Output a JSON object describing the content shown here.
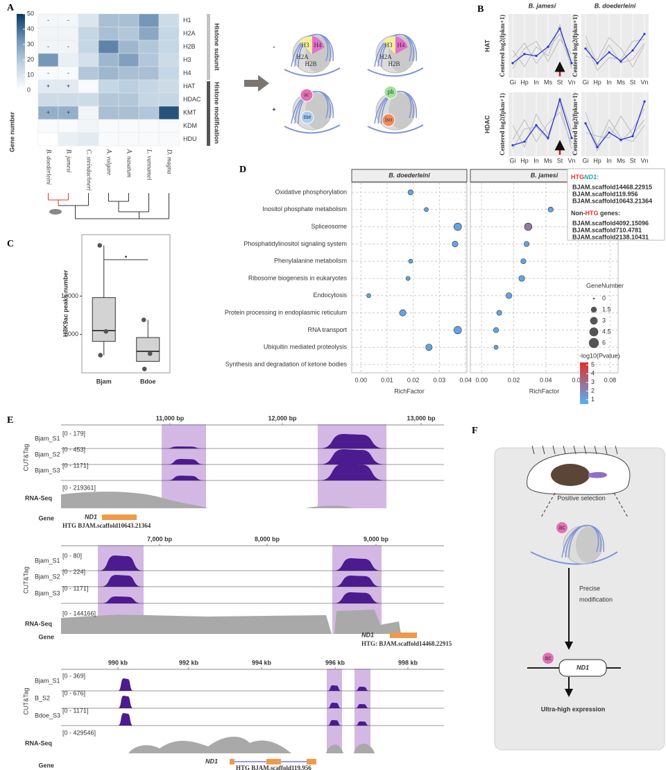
{
  "panel_labels": [
    "A",
    "B",
    "C",
    "D",
    "E",
    "F"
  ],
  "chart_data": [
    {
      "type": "heatmap",
      "rows": [
        "H1",
        "H2A",
        "H2B",
        "H3",
        "H4",
        "HAT",
        "HDAC",
        "KMT",
        "KDM",
        "HDU"
      ],
      "columns": [
        "B. doederleini",
        "B. jamesi",
        "C. steindachneri",
        "A. vulgare",
        "A. nasatum",
        "L. vannamei",
        "D. magna"
      ],
      "column_colors": [
        "#e8322a",
        "#e8322a",
        "#333333",
        "#333333",
        "#333333",
        "#333333",
        "#333333"
      ],
      "values": [
        [
          3,
          3,
          10,
          22,
          22,
          32,
          14
        ],
        [
          4,
          4,
          16,
          22,
          20,
          28,
          16
        ],
        [
          4,
          4,
          16,
          36,
          24,
          20,
          16
        ],
        [
          32,
          6,
          12,
          24,
          30,
          20,
          14
        ],
        [
          2,
          2,
          20,
          24,
          22,
          22,
          16
        ],
        [
          8,
          8,
          2,
          16,
          18,
          16,
          14
        ],
        [
          14,
          14,
          14,
          20,
          20,
          16,
          16
        ],
        [
          26,
          26,
          4,
          22,
          22,
          20,
          45
        ],
        [
          2,
          2,
          4,
          2,
          2,
          2,
          2
        ],
        [
          0,
          6,
          8,
          2,
          2,
          2,
          2
        ]
      ],
      "annotations": [
        [
          "-",
          "-",
          null,
          null,
          null,
          null,
          null
        ],
        [
          null,
          null,
          null,
          null,
          null,
          null,
          null
        ],
        [
          "-",
          "-",
          null,
          null,
          null,
          null,
          null
        ],
        [
          null,
          null,
          null,
          null,
          null,
          null,
          null
        ],
        [
          "-",
          "-",
          null,
          null,
          null,
          null,
          null
        ],
        [
          "+",
          "+",
          null,
          null,
          null,
          null,
          null
        ],
        [
          null,
          null,
          null,
          null,
          null,
          null,
          null
        ],
        [
          "+",
          "+",
          null,
          null,
          null,
          null,
          null
        ],
        [
          null,
          null,
          null,
          null,
          null,
          null,
          null
        ],
        [
          null,
          null,
          null,
          null,
          null,
          null,
          null
        ]
      ],
      "zlim": [
        0,
        50
      ],
      "zticks": [
        0,
        10,
        20,
        30,
        40,
        50
      ],
      "colorscale": [
        "#ffffff",
        "#c3d4e3",
        "#6f93b4",
        "#083862"
      ],
      "colorbar_label": "Gene number",
      "group_labels": [
        "Histone subunit",
        "Histone modification"
      ]
    },
    {
      "type": "line",
      "columns": [
        "B. jamesi",
        "B. doederleini"
      ],
      "rows": [
        "HAT",
        "HDAC"
      ],
      "ylabel": "Centered log2(fpkm+1)",
      "categories": [
        "Gi",
        "Hp",
        "In",
        "Ms",
        "St",
        "Vn"
      ],
      "ylim": [
        -1.4,
        2.1
      ],
      "panels": [
        {
          "series": [
            {
              "color": "#bdbdbd",
              "values": [
                -0.3,
                0.5,
                -0.6,
                0.2,
                1.0,
                -0.8
              ]
            },
            {
              "color": "#bdbdbd",
              "values": [
                0.1,
                -0.8,
                0.3,
                -0.2,
                1.5,
                -0.9
              ]
            },
            {
              "color": "#bdbdbd",
              "values": [
                -0.9,
                0.2,
                0.6,
                -0.5,
                0.7,
                -0.1
              ]
            },
            {
              "color": "#2a35d8",
              "values": [
                -0.6,
                -0.1,
                -0.2,
                0.3,
                1.3,
                -0.6
              ]
            }
          ]
        },
        {
          "series": [
            {
              "color": "#bdbdbd",
              "values": [
                0.9,
                -0.7,
                0.4,
                -0.6,
                -0.4,
                0.5
              ]
            },
            {
              "color": "#bdbdbd",
              "values": [
                -0.2,
                -0.4,
                0.8,
                0.2,
                -0.8,
                0.4
              ]
            },
            {
              "color": "#bdbdbd",
              "values": [
                0.5,
                -1.0,
                -0.3,
                -0.4,
                0.6,
                0.7
              ]
            },
            {
              "color": "#2a35d8",
              "values": [
                0.2,
                -0.6,
                0.0,
                -0.5,
                0.1,
                1.0
              ]
            }
          ]
        },
        {
          "series": [
            {
              "color": "#bdbdbd",
              "values": [
                -0.5,
                0.6,
                -0.6,
                0.4,
                1.0,
                -0.7
              ]
            },
            {
              "color": "#bdbdbd",
              "values": [
                0.3,
                -0.9,
                0.9,
                -0.2,
                1.4,
                -1.0
              ]
            },
            {
              "color": "#bdbdbd",
              "values": [
                -1.0,
                0.1,
                0.2,
                -0.5,
                1.8,
                0.0
              ]
            },
            {
              "color": "#2a35d8",
              "values": [
                -0.8,
                -0.6,
                0.3,
                -0.4,
                1.7,
                -0.4
              ]
            }
          ]
        },
        {
          "series": [
            {
              "color": "#bdbdbd",
              "values": [
                1.0,
                -0.8,
                0.6,
                -0.4,
                -0.6,
                0.3
              ]
            },
            {
              "color": "#bdbdbd",
              "values": [
                -0.1,
                -0.3,
                -0.4,
                0.8,
                -0.2,
                0.6
              ]
            },
            {
              "color": "#bdbdbd",
              "values": [
                0.5,
                -1.1,
                0.2,
                -0.6,
                0.1,
                1.2
              ]
            },
            {
              "color": "#2a35d8",
              "values": [
                0.4,
                -0.9,
                -0.1,
                -0.5,
                -0.3,
                1.6
              ]
            }
          ]
        }
      ]
    },
    {
      "type": "box",
      "categories": [
        "Bjam",
        "Bdoe"
      ],
      "ylabel": "H3K9ac peaks number",
      "significance": "*",
      "q1": [
        4100,
        1500
      ],
      "median": [
        5500,
        2800
      ],
      "q3": [
        9800,
        4600
      ],
      "whisker_low": [
        2300,
        1500
      ],
      "whisker_high": [
        16600,
        6900
      ],
      "points": [
        [
          16600,
          5400,
          2300
        ],
        [
          6900,
          2500,
          500
        ]
      ],
      "ylim": [
        0,
        18000
      ],
      "yticks": [
        5000,
        10000
      ],
      "box_color": "#d3d3d3"
    },
    {
      "type": "dot",
      "pathways": [
        "Oxidative phosphorylation",
        "Inositol phosphate metabolism",
        "Spliceosome",
        "Phosphatidylinositol signaling system",
        "Phenylalanine metabolism",
        "Ribosome biogenesis in eukaryotes",
        "Endocytosis",
        "Protein processing in endoplasmic reticulum",
        "RNA transport",
        "Ubiquitin mediated proteolysis",
        "Synthesis and degradation of ketone bodies"
      ],
      "highlight_color": "#e8322a",
      "xlabel": "RichFactor",
      "facets": [
        {
          "name": "B. doederleini",
          "x": [
            0.019,
            0.025,
            0.037,
            0.036,
            0.019,
            0.018,
            0.003,
            0.016,
            0.037,
            0.026,
            null
          ],
          "size": [
            1,
            0.5,
            3,
            1.5,
            0.5,
            0.5,
            0.5,
            2,
            3,
            2,
            null
          ],
          "pvalue": [
            1,
            1,
            1,
            1,
            1,
            1,
            1,
            1,
            1,
            1,
            null
          ],
          "xlim": [
            -0.0035,
            0.0405
          ],
          "xticks": [
            {
              "value": 0,
              "label": "0.00"
            },
            {
              "value": 0.01,
              "label": "0.01"
            },
            {
              "value": 0.02,
              "label": "0.02"
            },
            {
              "value": 0.03,
              "label": "0.03"
            },
            {
              "value": 0.04,
              "label": "0.04"
            }
          ]
        },
        {
          "name": "B. jamesi",
          "x": [
            0.073,
            0.043,
            0.029,
            0.028,
            0.026,
            0.025,
            0.017,
            0.011,
            0.009,
            0.009,
            null
          ],
          "size": [
            3,
            1,
            3,
            1,
            1,
            1.5,
            1.5,
            1,
            1,
            0.5,
            null
          ],
          "pvalue": [
            5,
            1,
            2.5,
            1,
            1,
            1,
            1,
            1,
            1,
            1,
            null
          ],
          "xlim": [
            -0.007,
            0.085
          ],
          "xticks": [
            {
              "value": 0,
              "label": "0.00"
            },
            {
              "value": 0.02,
              "label": "0.02"
            },
            {
              "value": 0.04,
              "label": "0.04"
            },
            {
              "value": 0.06,
              "label": "0.06"
            },
            {
              "value": 0.08,
              "label": "0.08"
            }
          ]
        }
      ],
      "size_legend_title": "GeneNumber",
      "size_legend": [
        0,
        1.5,
        3,
        4.5,
        6
      ],
      "color_legend_title": "-log10(Pvalue)",
      "color_ticks": [
        1,
        2,
        3,
        4,
        5
      ],
      "color_range": [
        0.5,
        5.3
      ],
      "colors": [
        "#56b1f7",
        "#e0302a"
      ]
    }
  ],
  "panel_a_diagram": {
    "minus": "-",
    "plus": "+",
    "histones": [
      "H3",
      "H4",
      "H2A",
      "H2B"
    ],
    "marks": [
      "ac",
      "ph",
      "me",
      "iso"
    ]
  },
  "panel_d_callout": {
    "htg": "HTG",
    "htg_gene": "ND1:",
    "htg_genes": [
      "BJAM.scaffold14468.22915",
      "BJAM.scaffold119.956",
      "BJAM.scaffold10643.21364"
    ],
    "non_prefix": "Non-",
    "non_htg": "HTG",
    "non_suffix": " genes:",
    "non_htg_genes": [
      "BJAM.scaffold4092.15096",
      "BJAM.scaffold710.4781",
      "BJAM.scaffold2138.10431"
    ]
  },
  "panel_e": {
    "group_label": "CUT&Tag",
    "rna_label": "RNA-Seq",
    "gene_label": "Gene",
    "blocks": [
      {
        "ruler": [
          "11,000 bp",
          "12,000 bp",
          "13,000 bp"
        ],
        "tracks": [
          {
            "name": "Bjam_S1",
            "range": "[0 - 179]"
          },
          {
            "name": "Bjam_S2",
            "range": "[0 - 453]"
          },
          {
            "name": "Bjam_S3",
            "range": "[0 - 1171]"
          }
        ],
        "rna_range": "[0 - 219361]",
        "gene": "ND1",
        "gene_id": "HTG  BJAM.scaffold10643.21364"
      },
      {
        "ruler": [
          "7,000 bp",
          "8,000 bp",
          "9,000 bp"
        ],
        "tracks": [
          {
            "name": "Bjam_S1",
            "range": "[0 - 80]"
          },
          {
            "name": "Bjam_S2",
            "range": "[0 - 224]"
          },
          {
            "name": "Bjam_S3",
            "range": "[0 - 1171]"
          }
        ],
        "rna_range": "[0 - 144166]",
        "gene": "ND1",
        "gene_id": "HTG: BJAM.scaffold14468.22915"
      },
      {
        "ruler": [
          "990 kb",
          "992 kb",
          "994 kb",
          "996 kb",
          "998 kb"
        ],
        "tracks": [
          {
            "name": "Bjam_S1",
            "range": "[0 - 369]"
          },
          {
            "name": "B_S2",
            "range": "[0 - 676]"
          },
          {
            "name": "Bdoe_S3",
            "range": "[0 - 1171]"
          }
        ],
        "rna_range": "[0 - 429546]",
        "gene": "ND1",
        "gene_id": "HTG  BJAM.scaffold119.956"
      }
    ]
  },
  "panel_f": {
    "step1": "Positive selection",
    "mark": "ac",
    "step2": [
      "Precise",
      "modification"
    ],
    "gene": "ND1",
    "result": "Ultra-high expression"
  }
}
